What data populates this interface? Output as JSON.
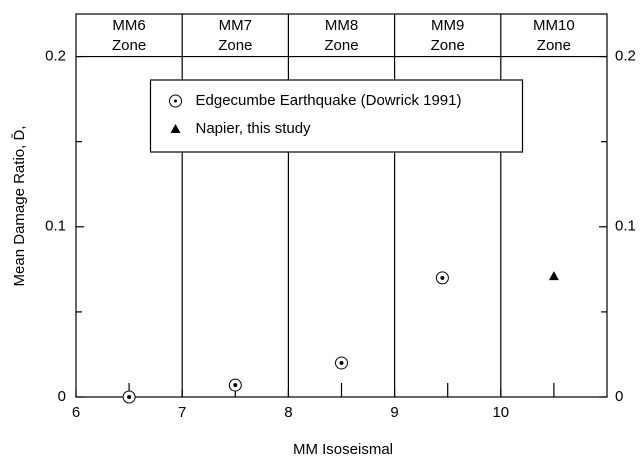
{
  "chart_data": {
    "type": "scatter",
    "x_label": "MM Isoseismal",
    "y_label": "Mean Damage Ratio, D̄,",
    "xlim": [
      6,
      11
    ],
    "xticks": [
      6,
      7,
      8,
      9,
      10
    ],
    "xminor": [
      6.5,
      7.5,
      8.5,
      9.5,
      10.5
    ],
    "ylim": [
      0,
      0.225
    ],
    "yticks": [
      0,
      0.1,
      0.2
    ],
    "yminor": [
      0.05,
      0.15
    ],
    "right_axis_labels": true,
    "zone_line": 0.2,
    "zones": [
      {
        "lines": [
          "MM6",
          "Zone"
        ],
        "from": 6,
        "to": 7
      },
      {
        "lines": [
          "MM7",
          "Zone"
        ],
        "from": 7,
        "to": 8
      },
      {
        "lines": [
          "MM8",
          "Zone"
        ],
        "from": 8,
        "to": 9
      },
      {
        "lines": [
          "MM9",
          "Zone"
        ],
        "from": 9,
        "to": 10
      },
      {
        "lines": [
          "MM10",
          "Zone"
        ],
        "from": 10,
        "to": 11
      }
    ],
    "legend": "upper center",
    "series": [
      {
        "name": "Edgecumbe Earthquake (Dowrick 1991)",
        "marker": "circle-dot",
        "color": "#000000",
        "x": [
          6.5,
          7.5,
          8.5,
          9.45
        ],
        "values": [
          0,
          0.007,
          0.02,
          0.07
        ]
      },
      {
        "name": "Napier, this study",
        "marker": "triangle",
        "color": "#000000",
        "x": [
          10.5
        ],
        "values": [
          0.071
        ]
      }
    ]
  }
}
